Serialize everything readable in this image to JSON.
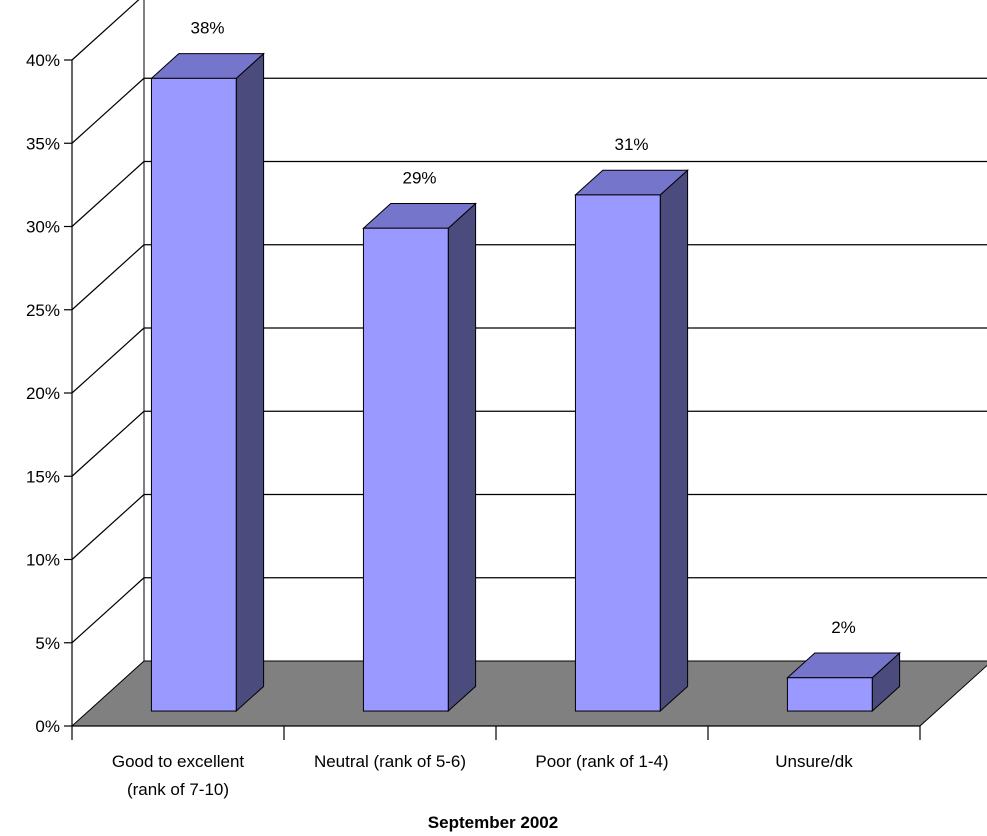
{
  "chart_data": {
    "type": "bar",
    "categories": [
      [
        "Good to excellent",
        "(rank of 7-10)"
      ],
      [
        "Neutral (rank of 5-6)"
      ],
      [
        "Poor (rank of 1-4)"
      ],
      [
        "Unsure/dk"
      ]
    ],
    "values": [
      38,
      29,
      31,
      2
    ],
    "data_labels": [
      "38%",
      "29%",
      "31%",
      "2%"
    ],
    "y_ticks": [
      "0%",
      "5%",
      "10%",
      "15%",
      "20%",
      "25%",
      "30%",
      "35%",
      "40%"
    ],
    "ylim": [
      0,
      40
    ],
    "xlabel": "September 2002",
    "ylabel": "",
    "title": "",
    "grid": true,
    "style": "3d-column",
    "colors": {
      "bar_front": "#9999ff",
      "bar_top": "#7575cc",
      "bar_side": "#4b4b7d",
      "floor": "#808080",
      "grid": "#000000"
    }
  }
}
